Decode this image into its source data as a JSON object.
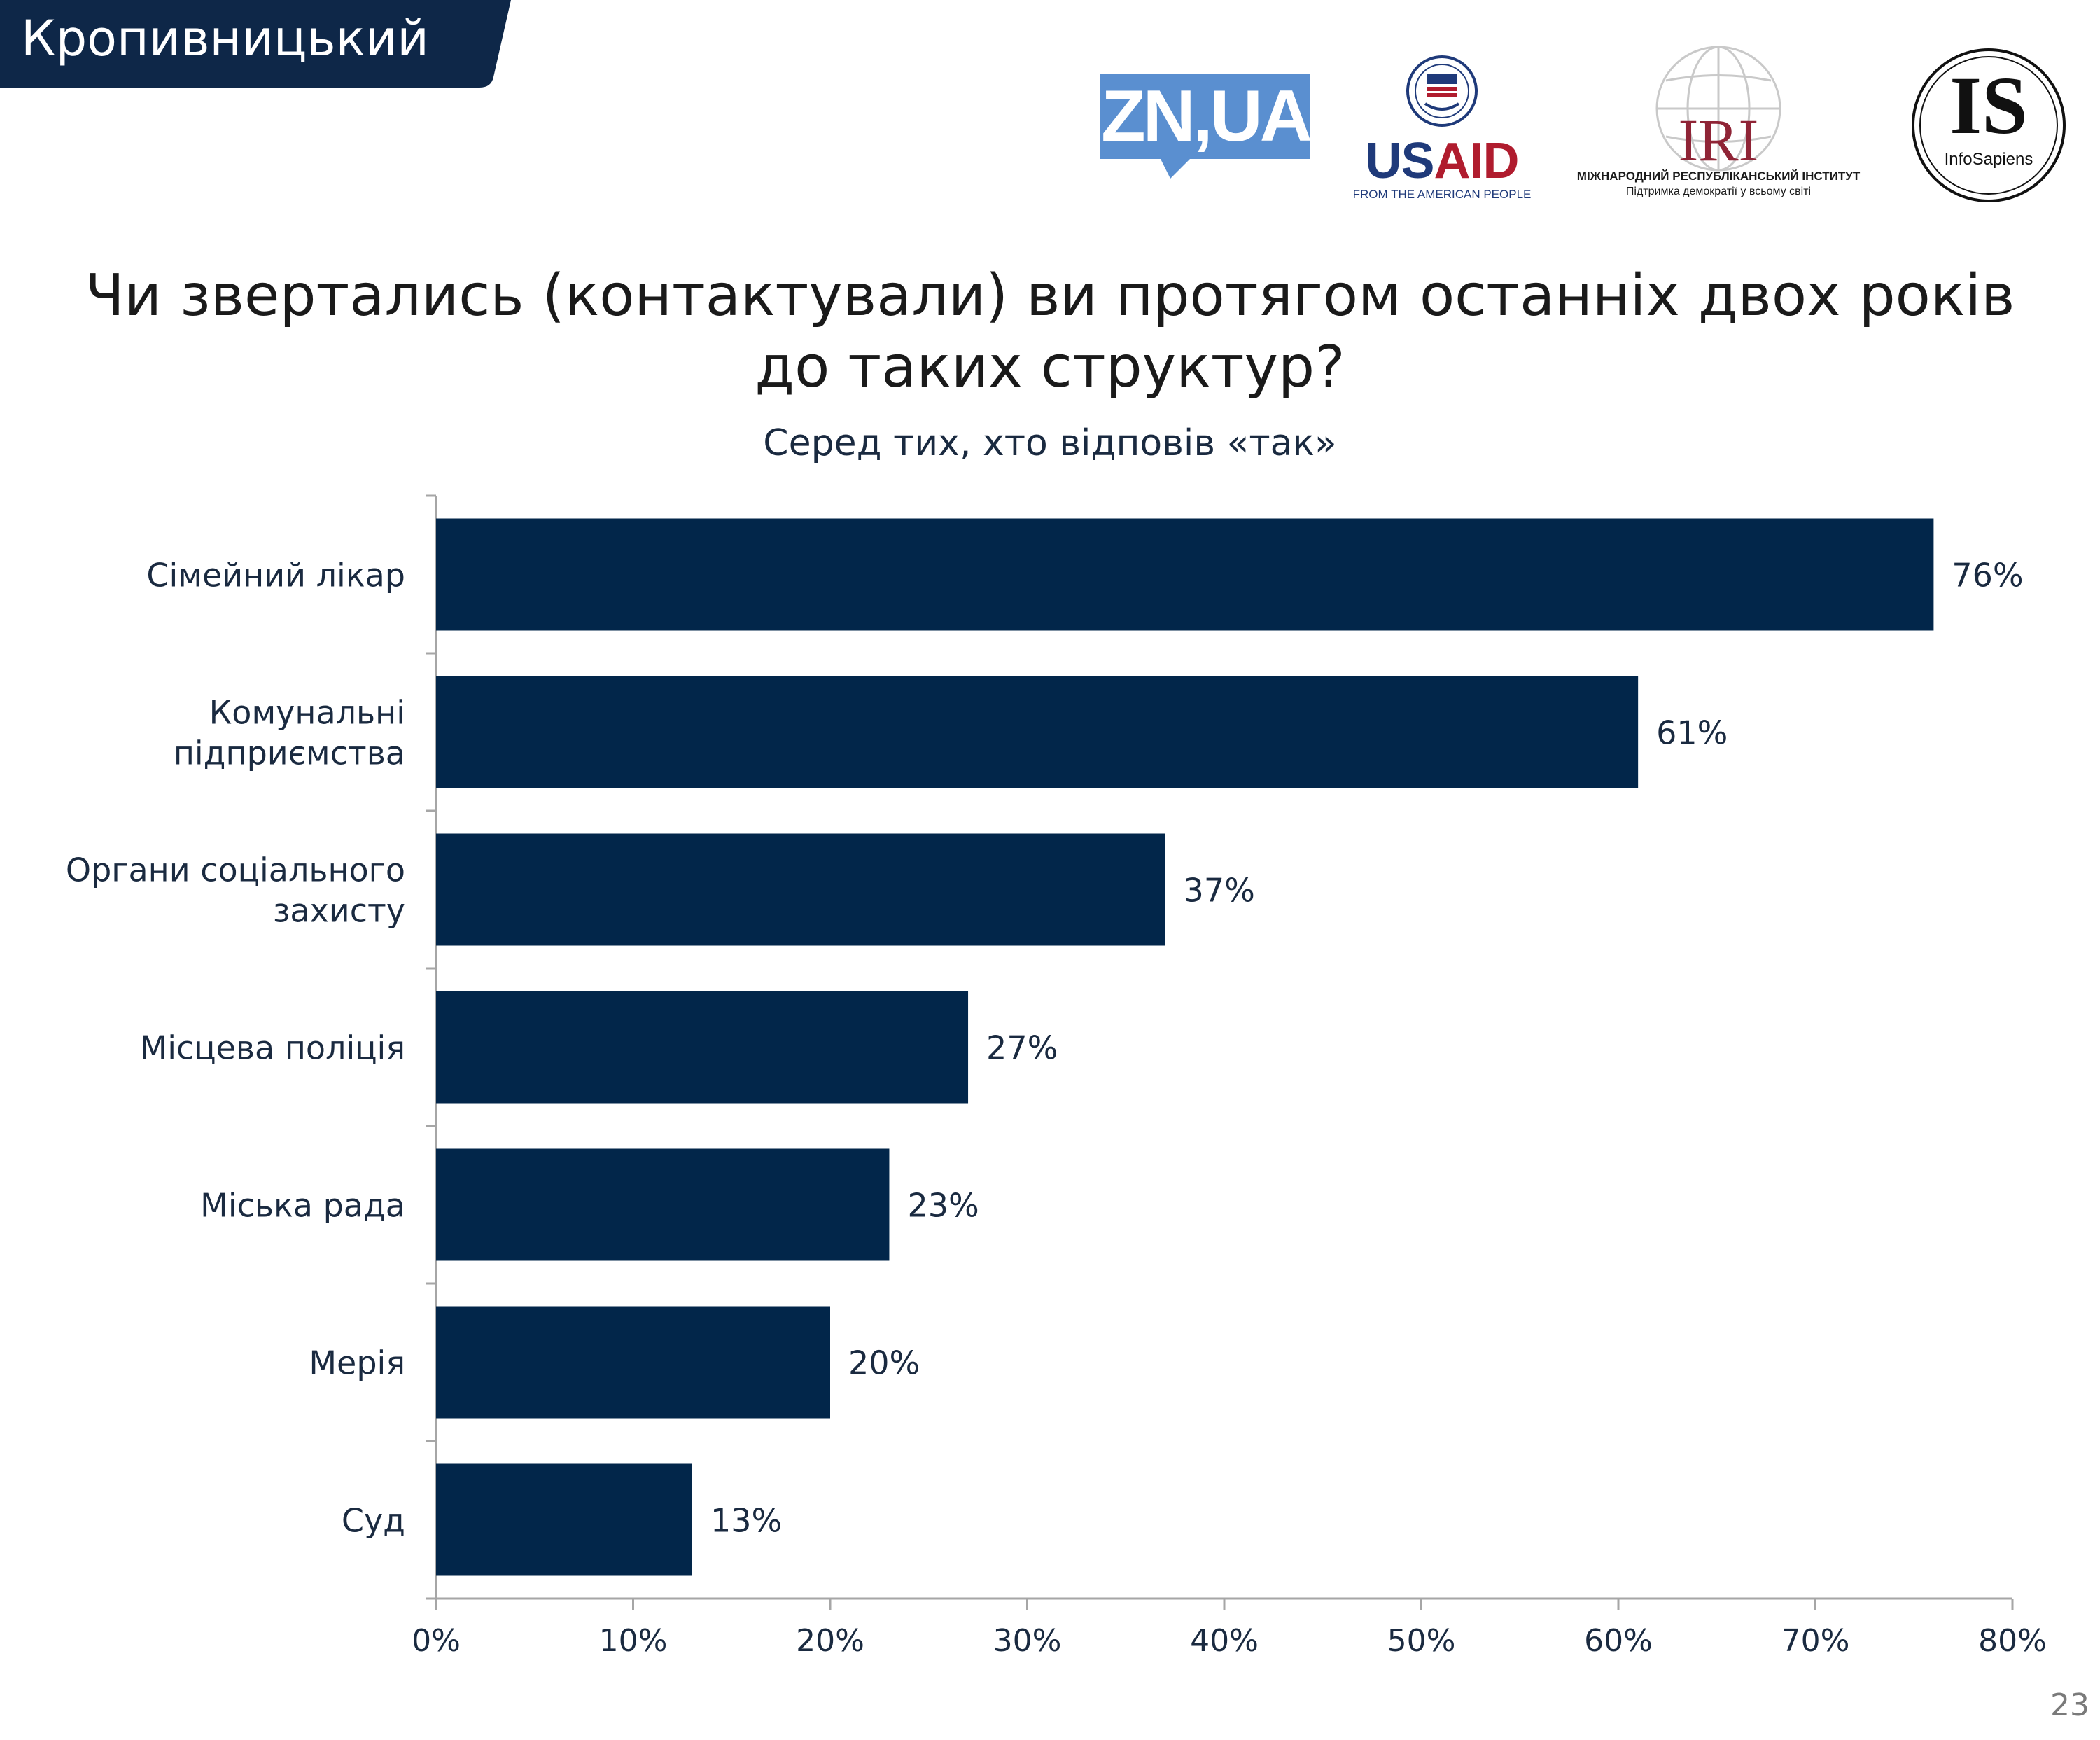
{
  "header": {
    "city": "Кропивницький"
  },
  "logos": {
    "zn": "ZN,UA",
    "usaid": {
      "us": "US",
      "aid": "AID",
      "subtitle": "FROM THE AMERICAN PEOPLE"
    },
    "iri": {
      "name": "IRI",
      "line1": "МІЖНАРОДНИЙ РЕСПУБЛІКАНСЬКИЙ ІНСТИТУТ",
      "line2": "Підтримка демократії у всьому світі"
    },
    "infosapiens": {
      "mark": "IS",
      "name": "InfoSapiens"
    }
  },
  "colors": {
    "bar": "#02264a",
    "tab": "#0e2748",
    "axis": "#a6a6a6"
  },
  "chart_data": {
    "type": "bar",
    "orientation": "horizontal",
    "title": "Чи звертались (контактували) ви протягом останніх двох років до таких структур?",
    "title_lines": [
      "Чи звертались (контактували) ви протягом останніх двох років",
      "до таких структур?"
    ],
    "subtitle": "Серед тих, хто відповів «так»",
    "categories": [
      [
        "Сімейний лікар"
      ],
      [
        "Комунальні",
        "підприємства"
      ],
      [
        "Органи соціального",
        "захисту"
      ],
      [
        "Місцева поліція"
      ],
      [
        "Міська рада"
      ],
      [
        "Мерія"
      ],
      [
        "Суд"
      ]
    ],
    "values": [
      76,
      61,
      37,
      27,
      23,
      20,
      13
    ],
    "value_labels": [
      "76%",
      "61%",
      "37%",
      "27%",
      "23%",
      "20%",
      "13%"
    ],
    "xlim": [
      0,
      80
    ],
    "xticks": [
      "0%",
      "10%",
      "20%",
      "30%",
      "40%",
      "50%",
      "60%",
      "70%",
      "80%"
    ],
    "unit": "%"
  },
  "page_number": "23"
}
